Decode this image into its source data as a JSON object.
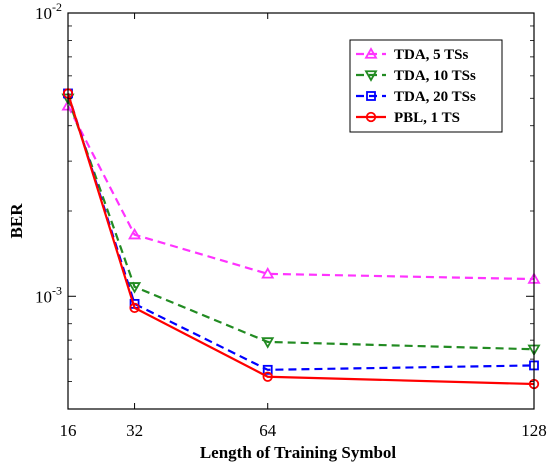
{
  "chart_data": {
    "type": "line",
    "xlabel": "Length of Training Symbol",
    "ylabel": "BER",
    "x": [
      16,
      32,
      64,
      128
    ],
    "xlim": [
      16,
      128
    ],
    "ylim": [
      0.0004,
      0.01
    ],
    "yscale": "log",
    "x_ticks": [
      "16",
      "32",
      "64",
      "128"
    ],
    "y_ticks": [
      {
        "value": 0.01,
        "base": "10",
        "exp": "-2"
      },
      {
        "value": 0.001,
        "base": "10",
        "exp": "-3"
      }
    ],
    "grid": false,
    "legend_position": "top-right",
    "series": [
      {
        "name": "TDA, 5 TSs",
        "color": "#ff33ff",
        "dash": "dashed",
        "marker": "triangle-up",
        "values": [
          0.0047,
          0.00165,
          0.0012,
          0.00115
        ]
      },
      {
        "name": "TDA, 10 TSs",
        "color": "#228b22",
        "dash": "dashed",
        "marker": "triangle-down",
        "values": [
          0.005,
          0.00108,
          0.00069,
          0.00065
        ]
      },
      {
        "name": "TDA, 20 TSs",
        "color": "#0000ff",
        "dash": "dashed",
        "marker": "square",
        "values": [
          0.0052,
          0.00094,
          0.00055,
          0.00057
        ]
      },
      {
        "name": "PBL, 1 TS",
        "color": "#ff0000",
        "dash": "solid",
        "marker": "circle",
        "values": [
          0.0052,
          0.00091,
          0.00052,
          0.00049
        ]
      }
    ]
  }
}
